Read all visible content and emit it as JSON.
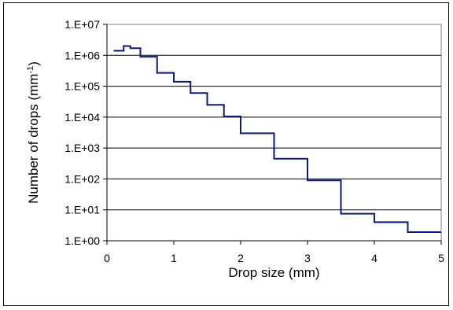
{
  "chart_data": {
    "type": "line",
    "step": true,
    "xlabel": "Drop size (mm)",
    "ylabel": {
      "prefix": "Number of drops (mm",
      "superscript": "-1",
      "suffix": ")"
    },
    "x_ticks": [
      "0",
      "1",
      "2",
      "3",
      "4",
      "5"
    ],
    "y_ticks": [
      "1.E+00",
      "1.E+01",
      "1.E+02",
      "1.E+03",
      "1.E+04",
      "1.E+05",
      "1.E+06",
      "1.E+07"
    ],
    "xlim": [
      0,
      5
    ],
    "ylim": [
      1,
      10000000
    ],
    "yscale": "log",
    "grid": "horizontal",
    "legend": "none",
    "series": [
      {
        "color": "#0a1a7a",
        "bins": [
          {
            "x0": 0.1,
            "x1": 0.25,
            "y": 1400000
          },
          {
            "x0": 0.25,
            "x1": 0.35,
            "y": 2000000
          },
          {
            "x0": 0.35,
            "x1": 0.5,
            "y": 1700000
          },
          {
            "x0": 0.5,
            "x1": 0.75,
            "y": 900000
          },
          {
            "x0": 0.75,
            "x1": 1.0,
            "y": 270000
          },
          {
            "x0": 1.0,
            "x1": 1.25,
            "y": 140000
          },
          {
            "x0": 1.25,
            "x1": 1.5,
            "y": 60000
          },
          {
            "x0": 1.5,
            "x1": 1.75,
            "y": 25000
          },
          {
            "x0": 1.75,
            "x1": 2.0,
            "y": 10500
          },
          {
            "x0": 2.0,
            "x1": 2.5,
            "y": 3000
          },
          {
            "x0": 2.5,
            "x1": 3.0,
            "y": 450
          },
          {
            "x0": 3.0,
            "x1": 3.5,
            "y": 90
          },
          {
            "x0": 3.5,
            "x1": 4.0,
            "y": 7.5
          },
          {
            "x0": 4.0,
            "x1": 4.5,
            "y": 4
          },
          {
            "x0": 4.5,
            "x1": 5.0,
            "y": 1.9
          }
        ]
      }
    ]
  }
}
